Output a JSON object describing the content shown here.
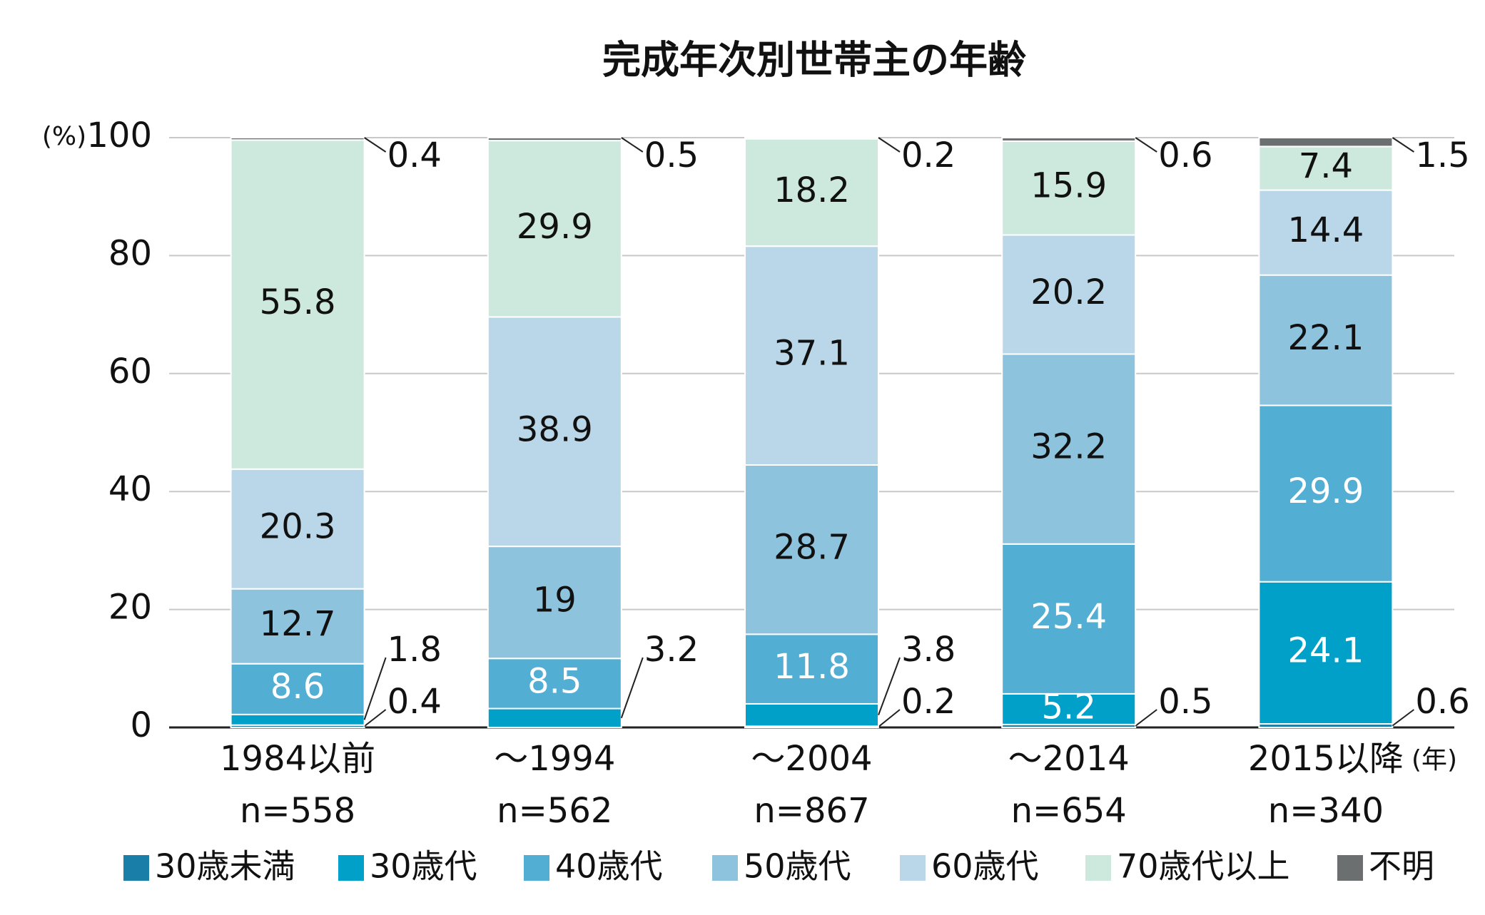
{
  "chart_data": {
    "type": "stacked_bar",
    "title": "完成年次別世帯主の年齢",
    "y_unit": "(%)",
    "x_unit": "(年)",
    "categories": [
      "1984以前",
      "～1994",
      "～2004",
      "～2014",
      "2015以降"
    ],
    "sample_sizes": [
      "n=558",
      "n=562",
      "n=867",
      "n=654",
      "n=340"
    ],
    "ylim": [
      0,
      100
    ],
    "yticks": [
      0,
      20,
      40,
      60,
      80,
      100
    ],
    "grid": true,
    "series": [
      {
        "name": "30歳未満",
        "color": "#1a7fa8",
        "values": [
          0.4,
          null,
          0.2,
          0.5,
          0.6
        ]
      },
      {
        "name": "30歳代",
        "color": "#00a0c9",
        "values": [
          1.8,
          3.2,
          3.8,
          5.2,
          24.1
        ]
      },
      {
        "name": "40歳代",
        "color": "#52aed3",
        "values": [
          8.6,
          8.5,
          11.8,
          25.4,
          29.9
        ]
      },
      {
        "name": "50歳代",
        "color": "#8ec3de",
        "values": [
          12.7,
          19.0,
          28.7,
          32.2,
          22.1
        ]
      },
      {
        "name": "60歳代",
        "color": "#b9d7e8",
        "values": [
          20.3,
          38.9,
          37.1,
          20.2,
          14.4
        ]
      },
      {
        "name": "70歳代以上",
        "color": "#cde8dd",
        "values": [
          55.8,
          29.9,
          18.2,
          15.9,
          7.4
        ]
      },
      {
        "name": "不明",
        "color": "#6b6f70",
        "values": [
          0.4,
          0.5,
          0.2,
          0.6,
          1.5
        ]
      }
    ]
  }
}
